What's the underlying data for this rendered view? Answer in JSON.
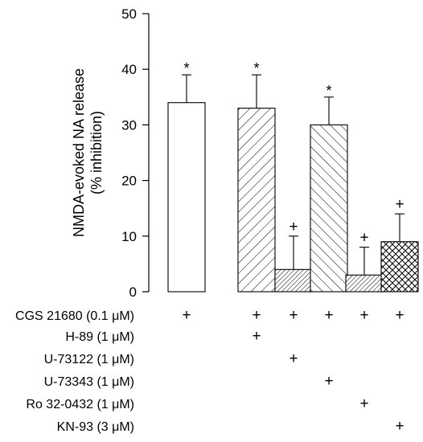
{
  "chart_data": {
    "type": "bar",
    "title": "",
    "ylabel": [
      "NMDA-evoked NA release",
      "(% inhibition)"
    ],
    "ylim": [
      0,
      50
    ],
    "yticks": [
      0,
      10,
      20,
      30,
      40,
      50
    ],
    "grid": false,
    "categories": [
      "CGS 21680",
      "CGS 21680 + H-89",
      "CGS 21680 + U-73122",
      "CGS 21680 + U-73343",
      "CGS 21680 + Ro 32-0432",
      "CGS 21680 + KN-93"
    ],
    "values": [
      34,
      33,
      4,
      30,
      3,
      9
    ],
    "errors": [
      5,
      6,
      6,
      5,
      5,
      5
    ],
    "fills": [
      "none",
      "hatch-forward",
      "hatch-forward-dense",
      "hatch-back",
      "hatch-forward-dense",
      "hatch-cross"
    ],
    "annotations": [
      "*",
      "*",
      "+",
      "*",
      "+",
      "+"
    ],
    "treatment_rows": [
      {
        "label": "CGS 21680 (0.1 μM)",
        "marks": [
          "+",
          "+",
          "+",
          "+",
          "+",
          "+"
        ]
      },
      {
        "label": "H-89 (1 μM)",
        "marks": [
          "",
          "+",
          "",
          "",
          "",
          ""
        ]
      },
      {
        "label": "U-73122 (1 μM)",
        "marks": [
          "",
          "",
          "+",
          "",
          "",
          ""
        ]
      },
      {
        "label": "U-73343 (1 μM)",
        "marks": [
          "",
          "",
          "",
          "+",
          "",
          ""
        ]
      },
      {
        "label": "Ro 32-0432 (1 μM)",
        "marks": [
          "",
          "",
          "",
          "",
          "+",
          ""
        ]
      },
      {
        "label": "KN-93 (3 μM)",
        "marks": [
          "",
          "",
          "",
          "",
          "",
          "+"
        ]
      }
    ]
  }
}
